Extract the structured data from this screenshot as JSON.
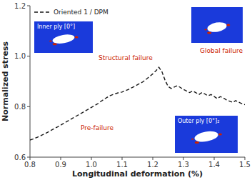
{
  "chart_data": {
    "type": "line",
    "x_label": "Longitudinal deformation (%)",
    "y_label": "Normalized stress",
    "x": [
      0.8,
      0.81,
      0.82,
      0.83,
      0.84,
      0.85,
      0.86,
      0.87,
      0.88,
      0.89,
      0.9,
      0.91,
      0.92,
      0.93,
      0.94,
      0.95,
      0.96,
      0.97,
      0.98,
      0.99,
      1.0,
      1.01,
      1.02,
      1.03,
      1.04,
      1.05,
      1.06,
      1.07,
      1.08,
      1.09,
      1.1,
      1.11,
      1.12,
      1.13,
      1.14,
      1.15,
      1.16,
      1.17,
      1.18,
      1.19,
      1.2,
      1.21,
      1.22,
      1.23,
      1.24,
      1.25,
      1.26,
      1.27,
      1.28,
      1.29,
      1.3,
      1.31,
      1.32,
      1.33,
      1.34,
      1.35,
      1.36,
      1.37,
      1.38,
      1.39,
      1.4,
      1.41,
      1.42,
      1.43,
      1.44,
      1.45,
      1.46,
      1.47,
      1.48,
      1.49,
      1.5
    ],
    "series": [
      {
        "name": "Oriented 1 / DPM",
        "color": "#1a1a1a",
        "line_style": "dashed",
        "values": [
          0.668,
          0.672,
          0.677,
          0.682,
          0.688,
          0.694,
          0.7,
          0.707,
          0.714,
          0.72,
          0.727,
          0.734,
          0.741,
          0.748,
          0.755,
          0.762,
          0.769,
          0.776,
          0.783,
          0.79,
          0.797,
          0.804,
          0.811,
          0.82,
          0.828,
          0.836,
          0.843,
          0.848,
          0.852,
          0.856,
          0.858,
          0.863,
          0.868,
          0.874,
          0.88,
          0.887,
          0.893,
          0.9,
          0.91,
          0.92,
          0.93,
          0.942,
          0.956,
          0.938,
          0.905,
          0.88,
          0.872,
          0.878,
          0.883,
          0.876,
          0.868,
          0.862,
          0.856,
          0.862,
          0.856,
          0.848,
          0.856,
          0.85,
          0.843,
          0.848,
          0.84,
          0.832,
          0.84,
          0.834,
          0.827,
          0.822,
          0.817,
          0.824,
          0.818,
          0.812,
          0.808
        ]
      }
    ],
    "xlim": [
      0.8,
      1.5
    ],
    "ylim": [
      0.6,
      1.2
    ],
    "xticks": [
      0.8,
      0.9,
      {
        "value": 1.0,
        "label": "1.0"
      },
      1.1,
      1.2,
      1.3,
      1.4,
      1.5
    ],
    "yticks": [
      0.6,
      0.8,
      {
        "value": 1.0,
        "label": "1.0"
      },
      1.2
    ],
    "grid": false,
    "legend": "upper left",
    "annotations": [
      {
        "text": "Pre-failure",
        "color": "#cc2200"
      },
      {
        "text": "Structural failure",
        "color": "#cc2200"
      },
      {
        "text": "Global failure",
        "color": "#cc2200"
      },
      {
        "text": "Inner ply [0°]"
      },
      {
        "text": "Outer ply [0°]₂"
      }
    ]
  }
}
